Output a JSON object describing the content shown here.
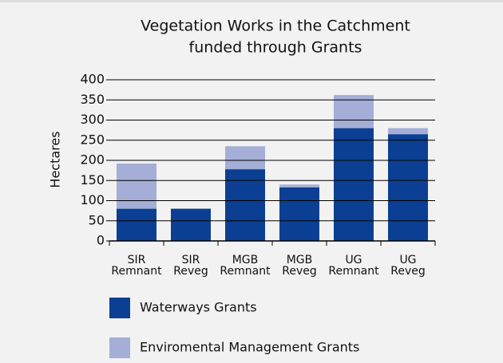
{
  "chart_data": {
    "type": "stacked_bar",
    "title": [
      "Vegetation Works in the Catchment",
      "funded through Grants"
    ],
    "ylabel": "Hectares",
    "categories": [
      [
        "SIR",
        "Remnant"
      ],
      [
        "SIR",
        "Reveg"
      ],
      [
        "MGB",
        "Remnant"
      ],
      [
        "MGB",
        "Reveg"
      ],
      [
        "UG",
        "Remnant"
      ],
      [
        "UG",
        "Reveg"
      ]
    ],
    "series": [
      {
        "name": "Waterways Grants",
        "color": "#0b3f93",
        "values": [
          80,
          80,
          178,
          133,
          280,
          265
        ]
      },
      {
        "name": "Enviromental Management Grants",
        "color": "#a4aed6",
        "values": [
          112,
          0,
          57,
          7,
          82,
          15
        ]
      }
    ],
    "ylim": [
      0,
      400
    ],
    "yticks": [
      0,
      50,
      100,
      150,
      200,
      250,
      300,
      350,
      400
    ],
    "grid": true
  }
}
